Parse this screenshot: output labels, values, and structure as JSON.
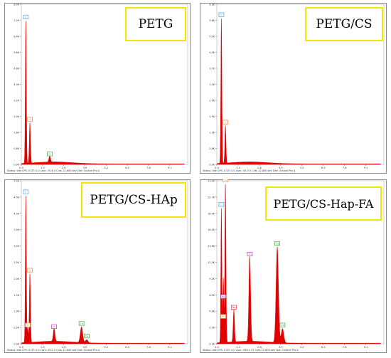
{
  "colors": {
    "spectrum": "#e00000",
    "frame": "#8a8a8a",
    "label_box": "#f3e600"
  },
  "chart_data": [
    {
      "type": "area",
      "title": "PETG",
      "xlim": [
        0,
        10.2
      ],
      "ylim": [
        0,
        8.3
      ],
      "x_ticks": [
        "0.0",
        "1.3",
        "2.6",
        "3.9",
        "5.2",
        "6.5",
        "7.8",
        "9.1"
      ],
      "y_ticks": [
        "0.0K",
        "0.8K",
        "1.6K",
        "2.4K",
        "3.2K",
        "4.0K",
        "4.8K",
        "5.6K",
        "6.4K",
        "7.2K",
        "8.0K"
      ],
      "peaks": [
        {
          "label": "C",
          "energy": 0.277,
          "height": 7.4,
          "tag_color": "#4aa3d8"
        },
        {
          "label": "O",
          "energy": 0.525,
          "height": 2.1,
          "tag_color": "#e08b4a"
        },
        {
          "label": "Si",
          "energy": 1.74,
          "height": 0.3,
          "tag_color": "#3caa3c"
        }
      ],
      "status": [
        "Status: Idle",
        "CPS: 0",
        "DT: 0.0",
        "Lsec: 70.6",
        "4 Cnts",
        "12.800 keV",
        "Det: Octane Pro A"
      ]
    },
    {
      "type": "area",
      "title": "PETG/CS",
      "xlim": [
        0,
        10.2
      ],
      "ylim": [
        0,
        8.5
      ],
      "x_ticks": [
        "0.0",
        "1.3",
        "2.6",
        "3.9",
        "5.2",
        "6.5",
        "7.8",
        "9.1"
      ],
      "y_ticks": [
        "0.0K",
        "0.6K",
        "1.2K",
        "1.9K",
        "2.5K",
        "3.1K",
        "3.7K",
        "4.3K",
        "5.0K",
        "5.6K",
        "6.2K"
      ],
      "peaks": [
        {
          "label": "C",
          "energy": 0.277,
          "height": 7.7,
          "tag_color": "#4aa3d8"
        },
        {
          "label": "O",
          "energy": 0.525,
          "height": 2.0,
          "tag_color": "#e08b4a"
        }
      ],
      "status": [
        "Status: Idle",
        "CPS: 0",
        "DT: 0.0",
        "Lsec: 50.0",
        "0 Cnts",
        "12.800 keV",
        "Det: Octane Pro A"
      ]
    },
    {
      "type": "area",
      "title": "PETG/CS-HAp",
      "xlim": [
        0,
        10.2
      ],
      "ylim": [
        0,
        5.2
      ],
      "x_ticks": [
        "0.0",
        "1.3",
        "2.6",
        "3.9",
        "5.2",
        "6.5",
        "7.8",
        "9.1"
      ],
      "y_ticks": [
        "0.0K",
        "0.5K",
        "1.0K",
        "1.5K",
        "2.0K",
        "2.5K",
        "3.0K",
        "3.5K",
        "4.0K",
        "4.5K",
        "5.0K"
      ],
      "peaks": [
        {
          "label": "C",
          "energy": 0.277,
          "height": 4.7,
          "tag_color": "#4aa3d8"
        },
        {
          "label": "O",
          "energy": 0.525,
          "height": 2.2,
          "tag_color": "#e08b4a"
        },
        {
          "label": "N",
          "energy": 0.392,
          "height": 0.45,
          "tag_color": "#d8b02a"
        },
        {
          "label": "P",
          "energy": 2.01,
          "height": 0.4,
          "tag_color": "#c030c0"
        },
        {
          "label": "Ca",
          "energy": 3.69,
          "height": 0.5,
          "tag_color": "#3caa3c"
        },
        {
          "label": "Ca",
          "energy": 4.01,
          "height": 0.1,
          "tag_color": "#3caa3c"
        }
      ],
      "status": [
        "Status: Idle",
        "CPS: 0",
        "DT: 0.0",
        "Lsec: 29.2",
        "2 Cnts",
        "12.840 keV",
        "Det: Octane Pro A"
      ]
    },
    {
      "type": "area",
      "title": "PETG/CS-Hap-FA",
      "xlim": [
        0,
        10.2
      ],
      "ylim": [
        0,
        23.0
      ],
      "x_ticks": [
        "0.0",
        "1.3",
        "2.6",
        "3.9",
        "5.2",
        "6.5",
        "7.8",
        "9.1"
      ],
      "y_ticks": [
        "0.0K",
        "2.3K",
        "4.6K",
        "6.9K",
        "9.2K",
        "11.5K",
        "13.8K",
        "16.1K",
        "18.4K",
        "20.7K",
        "23.0K"
      ],
      "peaks": [
        {
          "label": "C",
          "energy": 0.277,
          "height": 19.0,
          "tag_color": "#4aa3d8"
        },
        {
          "label": "O",
          "energy": 0.525,
          "height": 22.5,
          "tag_color": "#e08b4a"
        },
        {
          "label": "N",
          "energy": 0.392,
          "height": 3.2,
          "tag_color": "#d8b02a"
        },
        {
          "label": "Na",
          "energy": 1.04,
          "height": 4.5,
          "tag_color": "#e03030"
        },
        {
          "label": "Mg",
          "energy": 0.4,
          "height": 6.0,
          "tag_color": "#8040c0"
        },
        {
          "label": "P",
          "energy": 2.01,
          "height": 12.0,
          "tag_color": "#c030c0"
        },
        {
          "label": "Ca",
          "energy": 3.69,
          "height": 13.5,
          "tag_color": "#3caa3c"
        },
        {
          "label": "Ca",
          "energy": 4.01,
          "height": 2.0,
          "tag_color": "#3caa3c"
        }
      ],
      "status": [
        "Status: Idle",
        "CPS: 0",
        "DT: 0.0",
        "Lsec: 556.1",
        "47 Cnts",
        "12.800 keV",
        "Det: Octane Pro A"
      ]
    }
  ]
}
